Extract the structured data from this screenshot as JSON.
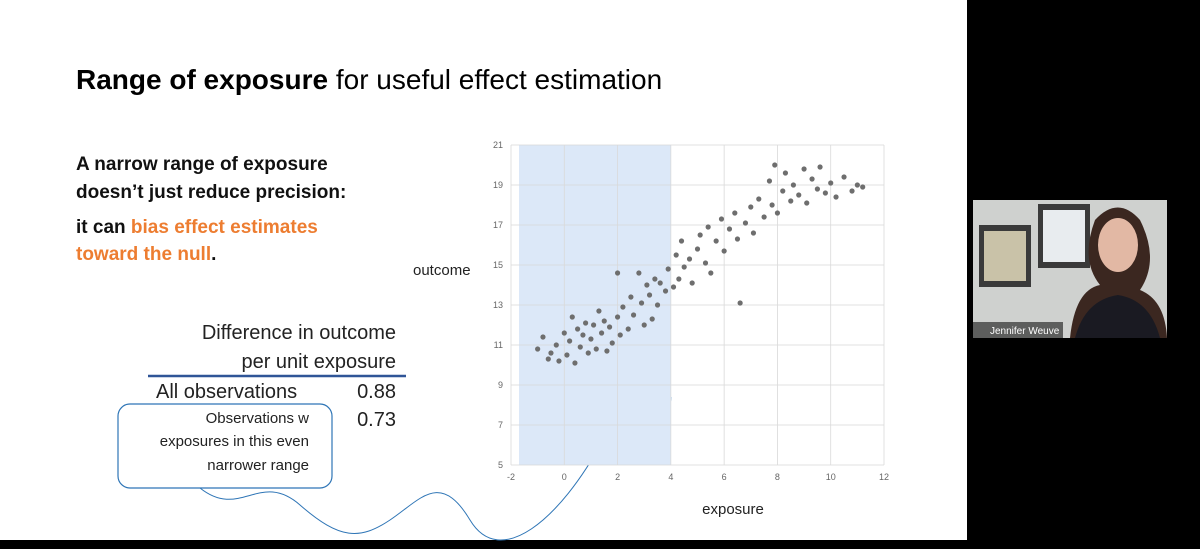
{
  "slide": {
    "title_bold": "Range of exposure",
    "title_rest": "for useful effect estimation",
    "point_line1": "A narrow range of exposure",
    "point_line2": "doesn’t just reduce precision:",
    "point_line3_start": "it can",
    "point_highlight_line1": "bias effect estimates",
    "point_highlight_line2": "toward the null",
    "point_end": ".",
    "table": {
      "header": [
        "Difference in outcome",
        "per unit exposure"
      ],
      "rows": [
        [
          "All observations",
          "0.88"
        ],
        [
          "",
          "0.73"
        ]
      ]
    },
    "callout": [
      "Observations w",
      "exposures in this even",
      "narrower range"
    ]
  },
  "chart_data": {
    "type": "scatter",
    "x_label": "exposure",
    "y_label": "outcome",
    "xlim": [
      -2,
      12
    ],
    "ylim": [
      5,
      21
    ],
    "xticks": [
      -2,
      0,
      2,
      4,
      6,
      8,
      10,
      12
    ],
    "yticks": [
      5,
      7,
      9,
      11,
      13,
      15,
      17,
      19,
      21
    ],
    "grid": true,
    "color": "#6e6e6e",
    "shaded_range": [
      -1.7,
      4
    ],
    "shade_color": "#dce8f8",
    "x": [
      -1,
      -0.8,
      -0.6,
      -0.5,
      -0.3,
      -0.2,
      0,
      0.1,
      0.2,
      0.3,
      0.4,
      0.5,
      0.6,
      0.7,
      0.8,
      0.9,
      1.0,
      1.1,
      1.2,
      1.3,
      1.4,
      1.5,
      1.6,
      1.7,
      1.8,
      2.0,
      2.0,
      2.1,
      2.2,
      2.4,
      2.5,
      2.6,
      2.8,
      2.9,
      3.0,
      3.1,
      3.2,
      3.3,
      3.4,
      3.5,
      3.6,
      3.8,
      3.9,
      4.1,
      4.2,
      4.3,
      4.4,
      4.5,
      4.7,
      4.8,
      5.0,
      5.1,
      5.3,
      5.4,
      5.5,
      5.7,
      5.9,
      6.0,
      6.2,
      6.4,
      6.5,
      6.6,
      6.8,
      7.0,
      7.1,
      7.3,
      7.5,
      7.7,
      7.8,
      7.9,
      8.0,
      8.2,
      8.3,
      8.5,
      8.6,
      8.8,
      9.0,
      9.1,
      9.3,
      9.5,
      9.6,
      9.8,
      10.0,
      10.2,
      10.5,
      10.8,
      11.0,
      11.2
    ],
    "values": [
      10.8,
      11.4,
      10.3,
      10.6,
      11.0,
      10.2,
      11.6,
      10.5,
      11.2,
      12.4,
      10.1,
      11.8,
      10.9,
      11.5,
      12.1,
      10.6,
      11.3,
      12.0,
      10.8,
      12.7,
      11.6,
      12.2,
      10.7,
      11.9,
      11.1,
      12.4,
      14.6,
      11.5,
      12.9,
      11.8,
      13.4,
      12.5,
      14.6,
      13.1,
      12.0,
      14.0,
      13.5,
      12.3,
      14.3,
      13.0,
      14.1,
      13.7,
      14.8,
      13.9,
      15.5,
      14.3,
      16.2,
      14.9,
      15.3,
      14.1,
      15.8,
      16.5,
      15.1,
      16.9,
      14.6,
      16.2,
      17.3,
      15.7,
      16.8,
      17.6,
      16.3,
      13.1,
      17.1,
      17.9,
      16.6,
      18.3,
      17.4,
      19.2,
      18.0,
      20.0,
      17.6,
      18.7,
      19.6,
      18.2,
      19.0,
      18.5,
      19.8,
      18.1,
      19.3,
      18.8,
      19.9,
      18.6,
      19.1,
      18.4,
      19.4,
      18.7,
      19.0,
      18.9
    ]
  },
  "video": {
    "participant_name": "Jennifer Weuve"
  }
}
